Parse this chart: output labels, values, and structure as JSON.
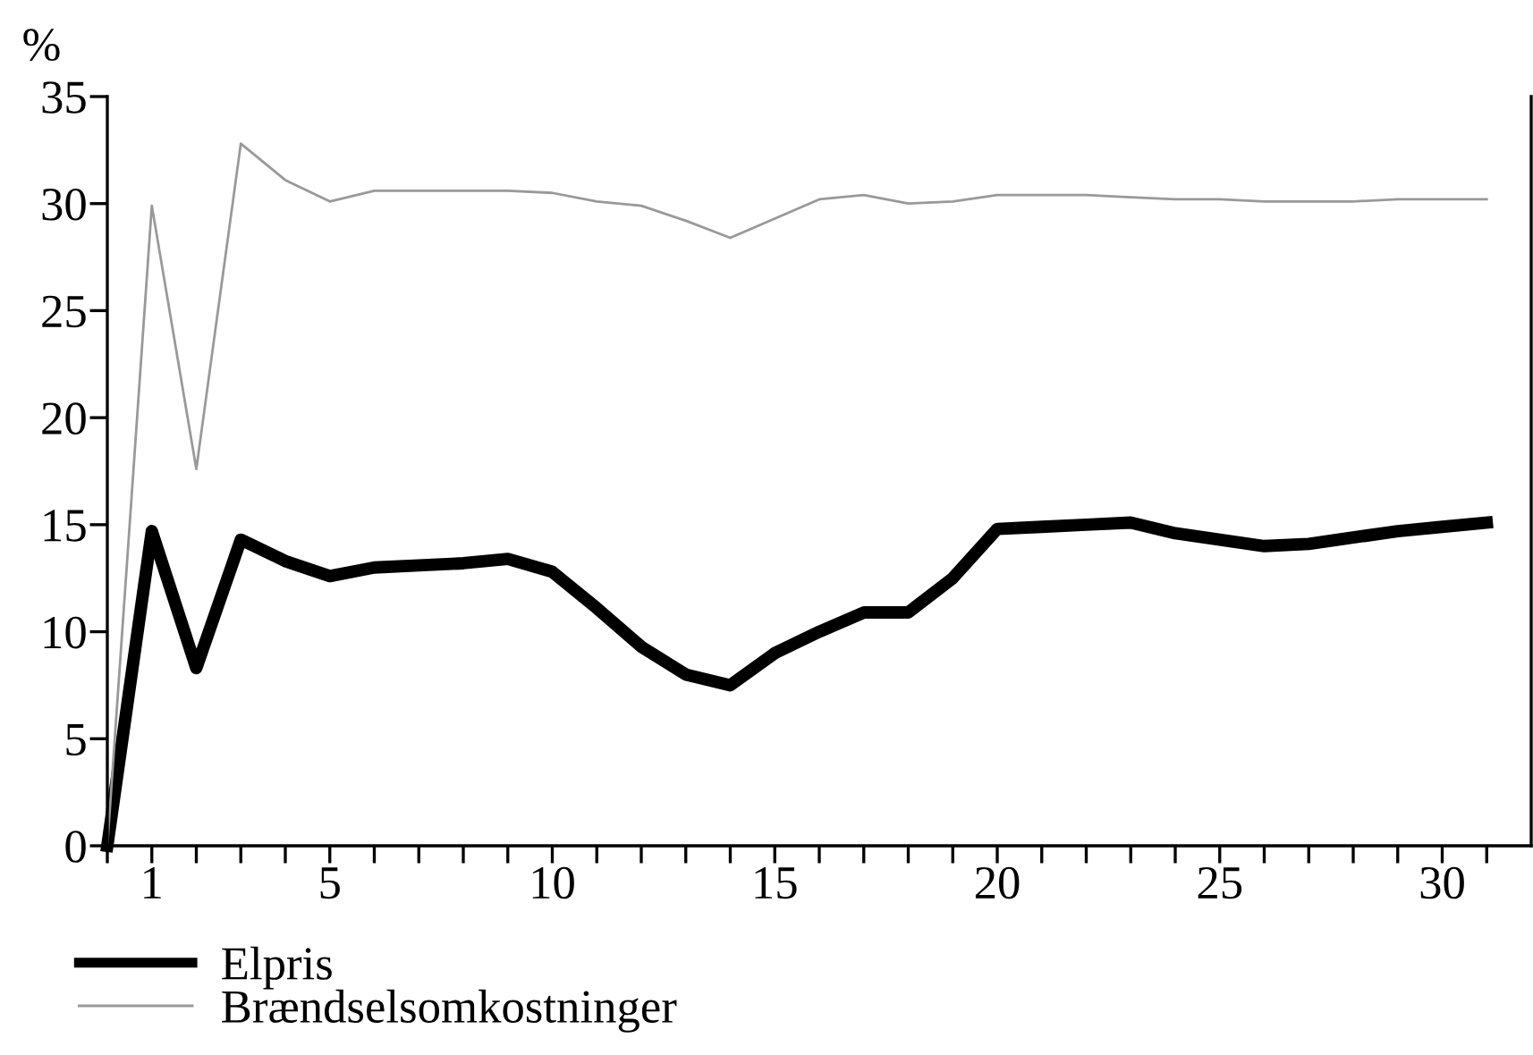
{
  "chart_data": {
    "type": "line",
    "ylabel": "%",
    "x": [
      0,
      1,
      2,
      3,
      4,
      5,
      6,
      7,
      8,
      9,
      10,
      11,
      12,
      13,
      14,
      15,
      16,
      17,
      18,
      19,
      20,
      21,
      22,
      23,
      24,
      25,
      26,
      27,
      28,
      29,
      30,
      31
    ],
    "series": [
      {
        "name": "Elpris",
        "color": "#000000",
        "values": [
          0,
          14.7,
          8.3,
          14.3,
          13.3,
          12.6,
          13.0,
          13.1,
          13.2,
          13.4,
          12.8,
          11.1,
          9.3,
          8.0,
          7.5,
          9.0,
          10.0,
          10.9,
          10.9,
          12.5,
          14.8,
          14.9,
          15.0,
          15.1,
          14.6,
          14.3,
          14.0,
          14.1,
          14.4,
          14.7,
          14.9,
          15.1
        ]
      },
      {
        "name": "Brændselsomkostninger",
        "color": "#999999",
        "values": [
          0,
          29.9,
          17.6,
          32.8,
          31.1,
          30.1,
          30.6,
          30.6,
          30.6,
          30.6,
          30.5,
          30.1,
          29.9,
          29.2,
          28.4,
          29.3,
          30.2,
          30.4,
          30.0,
          30.1,
          30.4,
          30.4,
          30.4,
          30.3,
          30.2,
          30.2,
          30.1,
          30.1,
          30.1,
          30.2,
          30.2,
          30.2
        ]
      }
    ],
    "xlim": [
      0,
      32
    ],
    "ylim": [
      0,
      35
    ],
    "xticks": [
      {
        "value": 0,
        "label": null
      },
      1,
      {
        "value": 2,
        "label": null
      },
      {
        "value": 3,
        "label": null
      },
      {
        "value": 4,
        "label": null
      },
      5,
      {
        "value": 6,
        "label": null
      },
      {
        "value": 7,
        "label": null
      },
      {
        "value": 8,
        "label": null
      },
      {
        "value": 9,
        "label": null
      },
      10,
      {
        "value": 11,
        "label": null
      },
      {
        "value": 12,
        "label": null
      },
      {
        "value": 13,
        "label": null
      },
      {
        "value": 14,
        "label": null
      },
      15,
      {
        "value": 16,
        "label": null
      },
      {
        "value": 17,
        "label": null
      },
      {
        "value": 18,
        "label": null
      },
      {
        "value": 19,
        "label": null
      },
      20,
      {
        "value": 21,
        "label": null
      },
      {
        "value": 22,
        "label": null
      },
      {
        "value": 23,
        "label": null
      },
      {
        "value": 24,
        "label": null
      },
      25,
      {
        "value": 26,
        "label": null
      },
      {
        "value": 27,
        "label": null
      },
      {
        "value": 28,
        "label": null
      },
      {
        "value": 29,
        "label": null
      },
      30,
      {
        "value": 31,
        "label": null
      }
    ],
    "yticks": [
      0,
      5,
      10,
      15,
      20,
      25,
      30,
      35
    ],
    "grid": false,
    "legend": "bottom left",
    "marker": "none",
    "line_style": "solid"
  }
}
